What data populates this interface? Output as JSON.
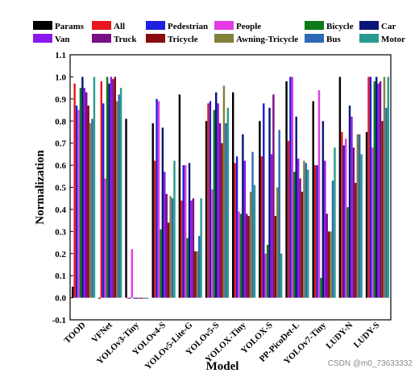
{
  "chart_data": {
    "type": "bar",
    "xlabel": "Model",
    "ylabel": "Normalization",
    "ylim": [
      -0.1,
      1.1
    ],
    "yticks": [
      "-0.1",
      "0.0",
      "0.1",
      "0.2",
      "0.3",
      "0.4",
      "0.5",
      "0.6",
      "0.7",
      "0.8",
      "0.9",
      "1.0",
      "1.1"
    ],
    "grid": false,
    "legend_position": "top",
    "categories": [
      "TOOD",
      "VFNet",
      "YOLOv3-Tiny",
      "YOLOv4-S",
      "YOLOv5-Lite-G",
      "YOLOv5-S",
      "YOLOX-Tiny",
      "YOLOX-S",
      "PP-PicoDet-L",
      "YOLOv7-Tiny",
      "LUDY-N",
      "LUDY-S"
    ],
    "series": [
      {
        "name": "Params",
        "color": "#000000",
        "values": [
          0.05,
          0.0,
          0.81,
          0.79,
          0.92,
          0.8,
          0.93,
          0.8,
          0.98,
          0.89,
          1.0,
          0.75
        ]
      },
      {
        "name": "All",
        "color": "#e8161d",
        "values": [
          0.97,
          0.98,
          0.0,
          0.62,
          0.44,
          0.88,
          0.61,
          0.64,
          0.71,
          0.6,
          0.75,
          1.0
        ]
      },
      {
        "name": "Pedestrian",
        "color": "#1f1fe0",
        "values": [
          0.87,
          0.88,
          0.0,
          0.9,
          0.6,
          0.89,
          0.64,
          0.88,
          1.0,
          0.6,
          0.69,
          1.0
        ]
      },
      {
        "name": "People",
        "color": "#e23be2",
        "values": [
          0.85,
          0.54,
          0.22,
          0.89,
          0.6,
          0.49,
          0.39,
          0.2,
          1.0,
          0.94,
          0.72,
          0.68
        ]
      },
      {
        "name": "Bicycle",
        "color": "#0d7a17",
        "values": [
          0.95,
          1.0,
          0.0,
          0.31,
          0.27,
          0.85,
          0.38,
          0.24,
          0.57,
          0.09,
          0.41,
          0.98
        ]
      },
      {
        "name": "Car",
        "color": "#0c1675",
        "values": [
          1.0,
          0.97,
          0.0,
          0.77,
          0.61,
          0.93,
          0.74,
          0.86,
          0.82,
          0.8,
          0.87,
          1.0
        ]
      },
      {
        "name": "Van",
        "color": "#8b18ee",
        "values": [
          0.95,
          1.0,
          0.0,
          0.57,
          0.44,
          0.88,
          0.62,
          0.65,
          0.63,
          0.62,
          0.82,
          0.97
        ]
      },
      {
        "name": "Truck",
        "color": "#7a0f86",
        "values": [
          0.93,
          0.99,
          0.0,
          0.47,
          0.45,
          0.79,
          0.38,
          0.92,
          0.54,
          0.38,
          0.68,
          0.98
        ]
      },
      {
        "name": "Tricycle",
        "color": "#8a0c0c",
        "values": [
          0.87,
          1.0,
          0.0,
          0.34,
          0.21,
          0.7,
          0.37,
          0.37,
          0.48,
          0.3,
          0.52,
          0.8
        ]
      },
      {
        "name": "Awning-Tricycle",
        "color": "#82803a",
        "values": [
          0.79,
          0.89,
          0.0,
          0.46,
          0.21,
          0.96,
          0.48,
          0.5,
          0.62,
          0.3,
          0.74,
          1.0
        ]
      },
      {
        "name": "Bus",
        "color": "#2c6ab5",
        "values": [
          0.81,
          0.92,
          0.0,
          0.45,
          0.28,
          0.79,
          0.66,
          0.76,
          0.61,
          0.53,
          0.74,
          0.86
        ]
      },
      {
        "name": "Motor",
        "color": "#2a9a90",
        "values": [
          1.0,
          0.95,
          0.0,
          0.62,
          0.45,
          0.86,
          0.51,
          0.2,
          0.58,
          0.68,
          0.65,
          1.0
        ]
      }
    ]
  },
  "watermark": "CSDN @m0_73633332"
}
